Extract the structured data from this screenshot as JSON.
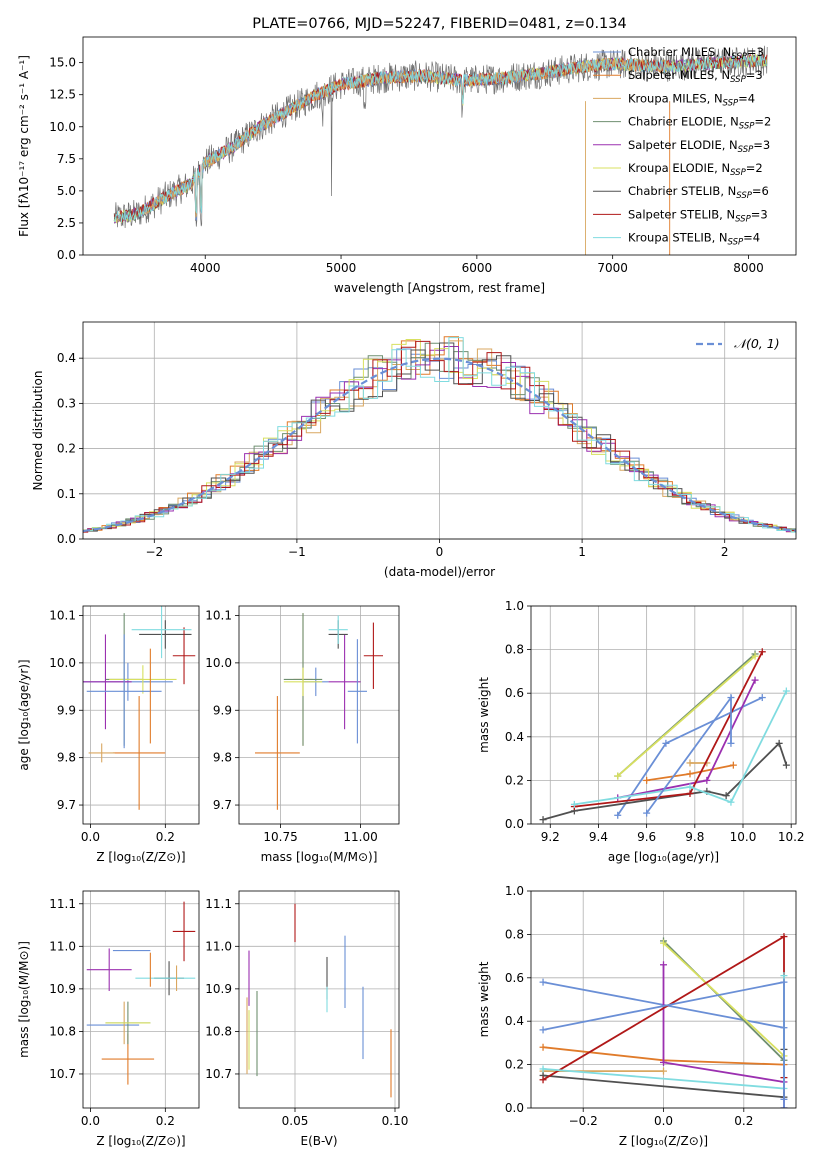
{
  "colors": [
    "#6a8fd6",
    "#e07b2a",
    "#d9a760",
    "#6f8f70",
    "#9b30b0",
    "#d8e060",
    "#505050",
    "#b01818",
    "#80dce0"
  ],
  "chart_data": [
    {
      "id": "spectrum",
      "type": "line",
      "title": "PLATE=0766, MJD=52247, FIBERID=0481, z=0.134",
      "xlabel": "wavelength [Angstrom, rest frame]",
      "ylabel": "Flux [fλ10⁻¹⁷ erg cm⁻² s⁻¹ A⁻¹]",
      "xlim": [
        3100,
        8350
      ],
      "ylim": [
        0,
        17
      ],
      "xticks": [
        "4000",
        "5000",
        "6000",
        "7000",
        "8000"
      ],
      "yticks": [
        "0.0",
        "2.5",
        "5.0",
        "7.5",
        "10.0",
        "12.5",
        "15.0"
      ],
      "legend_position": "top-right",
      "series": [
        {
          "name": "Chabrier MILES, N",
          "sub": "SSP",
          "suffix": "=3"
        },
        {
          "name": "Salpeter MILES, N",
          "sub": "SSP",
          "suffix": "=3"
        },
        {
          "name": "Kroupa MILES, N",
          "sub": "SSP",
          "suffix": "=4"
        },
        {
          "name": "Chabrier ELODIE, N",
          "sub": "SSP",
          "suffix": "=2"
        },
        {
          "name": "Salpeter ELODIE, N",
          "sub": "SSP",
          "suffix": "=3"
        },
        {
          "name": "Kroupa ELODIE, N",
          "sub": "SSP",
          "suffix": "=2"
        },
        {
          "name": "Chabrier STELIB, N",
          "sub": "SSP",
          "suffix": "=6"
        },
        {
          "name": "Salpeter STELIB, N",
          "sub": "SSP",
          "suffix": "=3"
        },
        {
          "name": "Kroupa STELIB, N",
          "sub": "SSP",
          "suffix": "=4"
        }
      ],
      "continuum": [
        [
          3330,
          2.9
        ],
        [
          3500,
          3.2
        ],
        [
          3700,
          4.5
        ],
        [
          3900,
          5.6
        ],
        [
          4000,
          7.2
        ],
        [
          4200,
          8.4
        ],
        [
          4400,
          10.0
        ],
        [
          4600,
          11.2
        ],
        [
          4800,
          12.4
        ],
        [
          5000,
          13.3
        ],
        [
          5300,
          13.8
        ],
        [
          5600,
          14.0
        ],
        [
          5900,
          13.6
        ],
        [
          6200,
          13.8
        ],
        [
          6500,
          14.2
        ],
        [
          6800,
          14.7
        ],
        [
          7000,
          14.9
        ],
        [
          7400,
          14.7
        ],
        [
          7800,
          15.0
        ],
        [
          8140,
          15.2
        ]
      ]
    },
    {
      "id": "residuals",
      "type": "line",
      "xlabel": "(data-model)/error",
      "ylabel": "Normed distribution",
      "xlim": [
        -2.5,
        2.5
      ],
      "ylim": [
        0,
        0.48
      ],
      "xticks": [
        "−2",
        "−1",
        "0",
        "1",
        "2"
      ],
      "yticks": [
        "0.0",
        "0.1",
        "0.2",
        "0.3",
        "0.4"
      ],
      "legend": "𝒩(0, 1)",
      "legend_position": "top-right"
    },
    {
      "id": "age-vs-z",
      "type": "scatter",
      "xlabel": "Z [log₁₀(Z/Z⊙)]",
      "ylabel": "age  [log₁₀(age/yr)]",
      "xlim": [
        -0.02,
        0.29
      ],
      "ylim": [
        9.66,
        10.12
      ],
      "xticks": [
        "0.0",
        "0.2"
      ],
      "yticks": [
        "9.7",
        "9.8",
        "9.9",
        "10.0",
        "10.1"
      ],
      "points": [
        {
          "x": 0.1,
          "y": 9.96,
          "xe": 0.12,
          "ye": 0.04
        },
        {
          "x": 0.13,
          "y": 9.81,
          "xe": 0.07,
          "ye": 0.12
        },
        {
          "x": 0.03,
          "y": 9.81,
          "xe": 0.035,
          "ye": 0.02
        },
        {
          "x": 0.09,
          "y": 9.965,
          "xe": 0.05,
          "ye": 0.14
        },
        {
          "x": 0.04,
          "y": 9.96,
          "xe": 0.07,
          "ye": 0.1
        },
        {
          "x": 0.14,
          "y": 9.965,
          "xe": 0.09,
          "ye": 0.03
        },
        {
          "x": 0.2,
          "y": 10.06,
          "xe": 0.07,
          "ye": 0.03
        },
        {
          "x": 0.25,
          "y": 10.015,
          "xe": 0.03,
          "ye": 0.06
        },
        {
          "x": 0.19,
          "y": 10.07,
          "xe": 0.08,
          "ye": 0.06
        },
        {
          "x": 0.09,
          "y": 9.94,
          "xe": 0.1,
          "ye": 0.12
        },
        {
          "x": 0.16,
          "y": 9.93,
          "xe": 0.0,
          "ye": 0.1
        }
      ]
    },
    {
      "id": "age-vs-mass",
      "type": "scatter",
      "xlabel": "mass [log₁₀(M/M⊙)]",
      "xlim": [
        10.62,
        11.12
      ],
      "ylim": [
        9.66,
        10.12
      ],
      "xticks": [
        "10.75",
        "11.00"
      ],
      "yticks": [
        "9.7",
        "9.8",
        "9.9",
        "10.0",
        "10.1"
      ],
      "points": [
        {
          "x": 10.86,
          "y": 9.96,
          "xe": 0.04,
          "ye": 0.03
        },
        {
          "x": 10.74,
          "y": 9.81,
          "xe": 0.07,
          "ye": 0.12
        },
        {
          "x": 10.82,
          "y": 9.965,
          "xe": 0.03,
          "ye": 0.14
        },
        {
          "x": 10.82,
          "y": 9.965,
          "xe": 0.06,
          "ye": 0.14
        },
        {
          "x": 10.95,
          "y": 9.96,
          "xe": 0.05,
          "ye": 0.1
        },
        {
          "x": 10.82,
          "y": 9.96,
          "xe": 0.06,
          "ye": 0.03
        },
        {
          "x": 10.93,
          "y": 10.06,
          "xe": 0.03,
          "ye": 0.03
        },
        {
          "x": 11.04,
          "y": 10.015,
          "xe": 0.03,
          "ye": 0.07
        },
        {
          "x": 10.93,
          "y": 10.07,
          "xe": 0.03,
          "ye": 0.03
        },
        {
          "x": 10.99,
          "y": 9.94,
          "xe": 0.03,
          "ye": 0.11
        }
      ]
    },
    {
      "id": "mass-weight-vs-age",
      "type": "line",
      "xlabel": "age  [log₁₀(age/yr)]",
      "ylabel": "mass weight",
      "xlim": [
        9.12,
        10.22
      ],
      "ylim": [
        0,
        1.0
      ],
      "xticks": [
        "9.2",
        "9.4",
        "9.6",
        "9.8",
        "10.0",
        "10.2"
      ],
      "yticks": [
        "0.0",
        "0.2",
        "0.4",
        "0.6",
        "0.8",
        "1.0"
      ],
      "series": [
        {
          "x": [
            9.48,
            9.68,
            10.08
          ],
          "y": [
            0.04,
            0.37,
            0.58
          ]
        },
        {
          "x": [
            9.6,
            9.78,
            9.96
          ],
          "y": [
            0.2,
            0.23,
            0.27
          ]
        },
        {
          "x": [
            9.78,
            9.85
          ],
          "y": [
            0.28,
            0.28
          ]
        },
        {
          "x": [
            9.48,
            10.05
          ],
          "y": [
            0.22,
            0.78
          ]
        },
        {
          "x": [
            9.48,
            9.85,
            10.05
          ],
          "y": [
            0.12,
            0.2,
            0.66
          ]
        },
        {
          "x": [
            9.48,
            10.05
          ],
          "y": [
            0.22,
            0.77
          ]
        },
        {
          "x": [
            9.17,
            9.3,
            9.85,
            9.93,
            10.15,
            10.18
          ],
          "y": [
            0.02,
            0.06,
            0.15,
            0.13,
            0.37,
            0.27
          ]
        },
        {
          "x": [
            9.3,
            9.78,
            10.08
          ],
          "y": [
            0.08,
            0.14,
            0.79
          ]
        },
        {
          "x": [
            9.3,
            9.78,
            9.95,
            10.18
          ],
          "y": [
            0.09,
            0.17,
            0.1,
            0.61
          ]
        },
        {
          "x": [
            9.6,
            9.95,
            9.95
          ],
          "y": [
            0.05,
            0.58,
            0.37
          ]
        }
      ]
    },
    {
      "id": "mass-vs-z",
      "type": "scatter",
      "xlabel": "Z [log₁₀(Z/Z⊙)]",
      "ylabel": "mass [log₁₀(M/M⊙)]",
      "xlim": [
        -0.02,
        0.29
      ],
      "ylim": [
        10.62,
        11.13
      ],
      "xticks": [
        "0.0",
        "0.2"
      ],
      "yticks": [
        "10.7",
        "10.8",
        "10.9",
        "11.0",
        "11.1"
      ],
      "points": [
        {
          "x": 0.06,
          "y": 10.815,
          "xe": 0.07,
          "ye": 0.0
        },
        {
          "x": 0.1,
          "y": 10.735,
          "xe": 0.07,
          "ye": 0.06
        },
        {
          "x": 0.09,
          "y": 10.82,
          "xe": 0.0,
          "ye": 0.05
        },
        {
          "x": 0.1,
          "y": 10.82,
          "xe": 0.06,
          "ye": 0.05
        },
        {
          "x": 0.05,
          "y": 10.945,
          "xe": 0.06,
          "ye": 0.05
        },
        {
          "x": 0.1,
          "y": 10.82,
          "xe": 0.06,
          "ye": 0.0
        },
        {
          "x": 0.21,
          "y": 10.925,
          "xe": 0.04,
          "ye": 0.04
        },
        {
          "x": 0.25,
          "y": 11.035,
          "xe": 0.03,
          "ye": 0.07
        },
        {
          "x": 0.2,
          "y": 10.925,
          "xe": 0.08,
          "ye": 0.0
        },
        {
          "x": 0.11,
          "y": 10.99,
          "xe": 0.05,
          "ye": 0.0
        },
        {
          "x": 0.16,
          "y": 10.945,
          "xe": 0.0,
          "ye": 0.04
        },
        {
          "x": 0.23,
          "y": 10.925,
          "xe": 0.0,
          "ye": 0.03
        }
      ]
    },
    {
      "id": "mass-vs-ebv",
      "type": "scatter",
      "xlabel": "E(B-V)",
      "xlim": [
        0.022,
        0.102
      ],
      "ylim": [
        10.62,
        11.13
      ],
      "xticks": [
        "0.05",
        "0.10"
      ],
      "yticks": [
        "10.7",
        "10.8",
        "10.9",
        "11.0",
        "11.1"
      ],
      "points": [
        {
          "x": 0.084,
          "y": 10.82,
          "xe": 0,
          "ye": 0.085
        },
        {
          "x": 0.098,
          "y": 10.725,
          "xe": 0,
          "ye": 0.08
        },
        {
          "x": 0.026,
          "y": 10.79,
          "xe": 0,
          "ye": 0.09
        },
        {
          "x": 0.031,
          "y": 10.795,
          "xe": 0,
          "ye": 0.1
        },
        {
          "x": 0.027,
          "y": 10.925,
          "xe": 0,
          "ye": 0.065
        },
        {
          "x": 0.027,
          "y": 10.78,
          "xe": 0,
          "ye": 0.07
        },
        {
          "x": 0.066,
          "y": 10.925,
          "xe": 0,
          "ye": 0.05
        },
        {
          "x": 0.05,
          "y": 11.055,
          "xe": 0,
          "ye": 0.045
        },
        {
          "x": 0.066,
          "y": 10.875,
          "xe": 0,
          "ye": 0.03
        },
        {
          "x": 0.075,
          "y": 10.94,
          "xe": 0,
          "ye": 0.085
        }
      ]
    },
    {
      "id": "mass-weight-vs-z",
      "type": "line",
      "xlabel": "Z [log₁₀(Z/Z⊙)]",
      "ylabel": "mass weight",
      "xlim": [
        -0.33,
        0.33
      ],
      "ylim": [
        0,
        1.0
      ],
      "xticks": [
        "−0.2",
        "0.0",
        "0.2"
      ],
      "yticks": [
        "0.0",
        "0.2",
        "0.4",
        "0.6",
        "0.8",
        "1.0"
      ],
      "series": [
        {
          "x": [
            -0.3,
            0.3,
            0.3
          ],
          "y": [
            0.58,
            0.37,
            0.04
          ]
        },
        {
          "x": [
            -0.3,
            0.0,
            0.3
          ],
          "y": [
            0.28,
            0.22,
            0.2
          ]
        },
        {
          "x": [
            -0.3,
            0.0
          ],
          "y": [
            0.17,
            0.17
          ]
        },
        {
          "x": [
            0.0,
            0.3
          ],
          "y": [
            0.77,
            0.22
          ]
        },
        {
          "x": [
            0.0,
            0.0,
            0.3,
            0.3
          ],
          "y": [
            0.66,
            0.21,
            0.12,
            0.0
          ]
        },
        {
          "x": [
            0.0,
            0.3
          ],
          "y": [
            0.76,
            0.24
          ]
        },
        {
          "x": [
            -0.3,
            0.3,
            0.3
          ],
          "y": [
            0.15,
            0.05,
            0.27
          ]
        },
        {
          "x": [
            -0.3,
            0.3,
            0.3
          ],
          "y": [
            0.13,
            0.79,
            0.14
          ]
        },
        {
          "x": [
            -0.3,
            0.3,
            0.3
          ],
          "y": [
            0.18,
            0.09,
            0.61
          ]
        },
        {
          "x": [
            -0.3,
            0.3,
            0.3
          ],
          "y": [
            0.36,
            0.58,
            0.0
          ]
        }
      ]
    }
  ]
}
